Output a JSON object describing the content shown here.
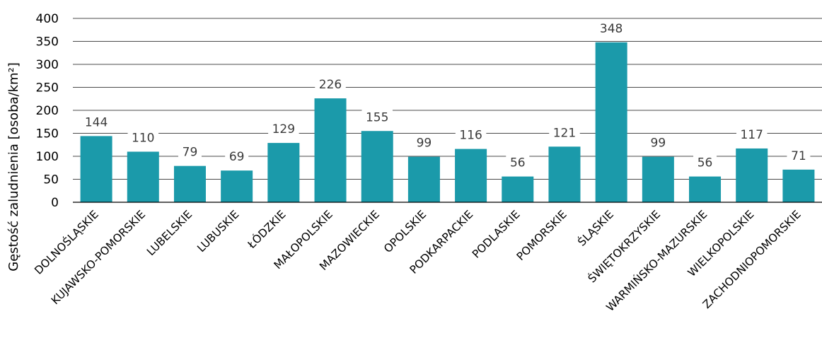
{
  "chart_data": {
    "type": "bar",
    "categories": [
      "DOLNOŚLĄSKIE",
      "KUJAWSKO-POMORSKIE",
      "LUBELSKIE",
      "LUBUSKIE",
      "ŁÓDZKIE",
      "MAŁOPOLSKIE",
      "MAZOWIECKIE",
      "OPOLSKIE",
      "PODKARPACKIE",
      "PODLASKIE",
      "POMORSKIE",
      "ŚLĄSKIE",
      "ŚWIĘTOKRZYSKIE",
      "WARMIŃSKO-MAZURSKIE",
      "WIELKOPOLSKIE",
      "ZACHODNIOPOMORSKIE"
    ],
    "values": [
      144,
      110,
      79,
      69,
      129,
      226,
      155,
      99,
      116,
      56,
      121,
      348,
      99,
      56,
      117,
      71
    ],
    "data_labels": [
      "144",
      "110",
      "79",
      "69",
      "129",
      "226",
      "155",
      "99",
      "116",
      "56",
      "121",
      "348",
      "99",
      "56",
      "117",
      "71"
    ],
    "ylabel": "Gęstość zaludnienia [osoba/km²]",
    "xlabel": "",
    "ylim": [
      0,
      400
    ],
    "yticks": [
      0,
      50,
      100,
      150,
      200,
      250,
      300,
      350,
      400
    ],
    "ytick_labels": [
      "0",
      "50",
      "100",
      "150",
      "200",
      "250",
      "300",
      "350",
      "400"
    ],
    "grid": true,
    "legend": "none",
    "colors": {
      "bar": "#1B9AAA",
      "grid": "#4a4a4a",
      "axis": "#000000",
      "label": "#3a3a3a"
    }
  }
}
